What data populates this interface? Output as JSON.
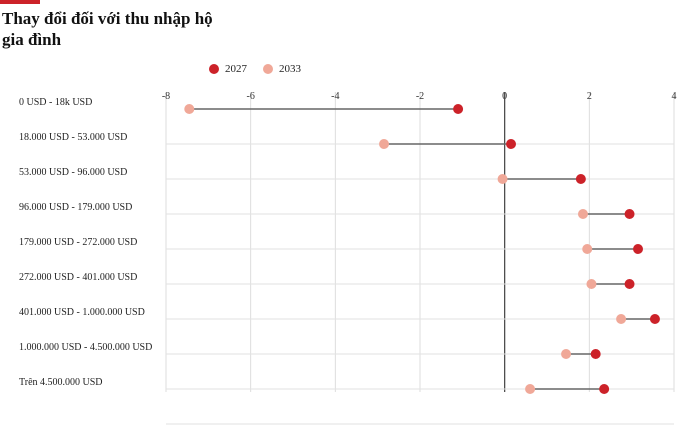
{
  "chart_data": {
    "type": "dumbbell",
    "title": "Thay đổi đối với thu nhập hộ gia đình",
    "xlim": [
      -8,
      4
    ],
    "x_ticks": [
      "-8",
      "-6",
      "-4",
      "-2",
      "0",
      "2",
      "4"
    ],
    "categories": [
      "0 USD - 18k USD",
      "18.000 USD - 53.000 USD",
      "53.000 USD - 96.000 USD",
      "96.000 USD - 179.000 USD",
      "179.000 USD - 272.000 USD",
      "272.000 USD - 401.000 USD",
      "401.000 USD - 1.000.000 USD",
      "1.000.000 USD - 4.500.000 USD",
      "Trên 4.500.000 USD"
    ],
    "series": [
      {
        "name": "2027",
        "color": "#cc2229",
        "values": [
          -1.1,
          0.15,
          1.8,
          2.95,
          3.15,
          2.95,
          3.55,
          2.15,
          2.35
        ]
      },
      {
        "name": "2033",
        "color": "#f0a898",
        "values": [
          -7.45,
          -2.85,
          -0.05,
          1.85,
          1.95,
          2.05,
          2.75,
          1.45,
          0.6
        ]
      }
    ],
    "grid": true,
    "legend_position": "top"
  }
}
